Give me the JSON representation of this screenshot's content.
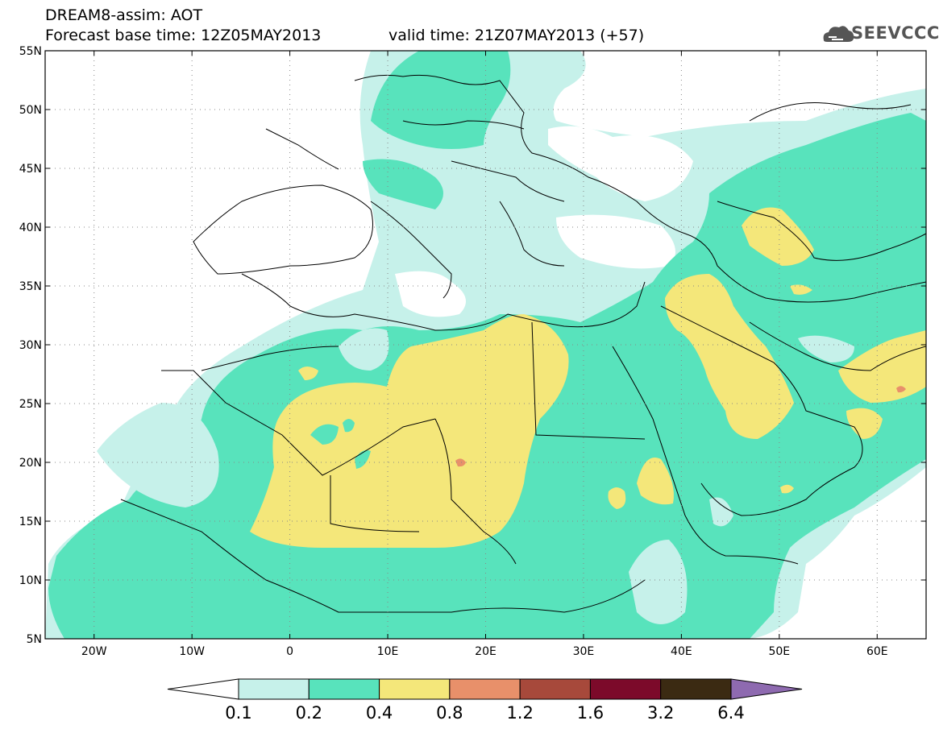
{
  "title": {
    "product": "DREAM8-assim: AOT",
    "base_time": "Forecast base time: 12Z05MAY2013",
    "valid_time": "valid time: 21Z07MAY2013 (+57)"
  },
  "logo": {
    "text": "SEEVCCC",
    "icon": "cloud-logo-icon"
  },
  "map": {
    "lon_range": [
      -25,
      65
    ],
    "lat_range": [
      5,
      55
    ],
    "lon_ticks": [
      {
        "value": -20,
        "label": "20W"
      },
      {
        "value": -10,
        "label": "10W"
      },
      {
        "value": 0,
        "label": "0"
      },
      {
        "value": 10,
        "label": "10E"
      },
      {
        "value": 20,
        "label": "20E"
      },
      {
        "value": 30,
        "label": "30E"
      },
      {
        "value": 40,
        "label": "40E"
      },
      {
        "value": 50,
        "label": "50E"
      },
      {
        "value": 60,
        "label": "60E"
      }
    ],
    "lat_ticks": [
      {
        "value": 55,
        "label": "55N"
      },
      {
        "value": 50,
        "label": "50N"
      },
      {
        "value": 45,
        "label": "45N"
      },
      {
        "value": 40,
        "label": "40N"
      },
      {
        "value": 35,
        "label": "35N"
      },
      {
        "value": 30,
        "label": "30N"
      },
      {
        "value": 25,
        "label": "25N"
      },
      {
        "value": 20,
        "label": "20N"
      },
      {
        "value": 15,
        "label": "15N"
      },
      {
        "value": 10,
        "label": "10N"
      },
      {
        "value": 5,
        "label": "5N"
      }
    ],
    "grid": true
  },
  "colorbar": {
    "colors": [
      "#ffffff",
      "#c6f1ea",
      "#58e3bc",
      "#f4e77a",
      "#e8906a",
      "#a7493b",
      "#7c0a2a",
      "#3b2a12",
      "#8e6ab0"
    ],
    "labels": [
      "0.1",
      "0.2",
      "0.4",
      "0.8",
      "1.2",
      "1.6",
      "3.2",
      "6.4"
    ]
  }
}
